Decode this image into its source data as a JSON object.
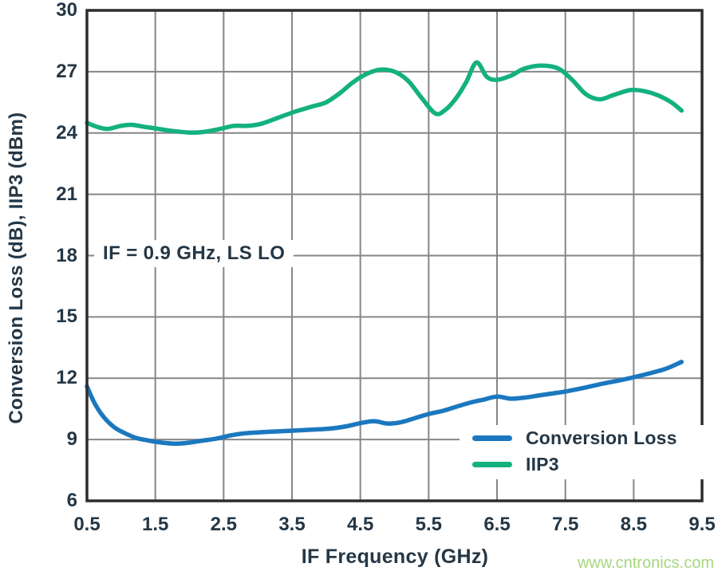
{
  "colors": {
    "background": "#ffffff",
    "text": "#243746",
    "grid": "#868686",
    "border": "#2d2d2d",
    "conversion_loss_blue": "#1b78bf",
    "iip3_green": "#13b17f",
    "watermark_green": "#a7d77d"
  },
  "watermark": "www.cntronics.com",
  "chart_data": {
    "type": "line",
    "title": "",
    "xlabel": "IF Frequency (GHz)",
    "ylabel": "Conversion Loss (dB), IIP3 (dBm)",
    "annotation": "IF = 0.9 GHz, LS LO",
    "grid": true,
    "legend_position": "inside lower right",
    "xlim": [
      0.5,
      9.5
    ],
    "ylim": [
      6,
      30
    ],
    "xticks": [
      0.5,
      1.5,
      2.5,
      3.5,
      4.5,
      5.5,
      6.5,
      7.5,
      8.5,
      9.5
    ],
    "yticks": [
      6,
      9,
      12,
      15,
      18,
      21,
      24,
      27,
      30
    ],
    "xtick_labels": [
      "0.5",
      "1.5",
      "2.5",
      "3.5",
      "4.5",
      "5.5",
      "6.5",
      "7.5",
      "8.5",
      "9.5"
    ],
    "ytick_labels": [
      "6",
      "9",
      "12",
      "15",
      "18",
      "21",
      "24",
      "27",
      "30"
    ],
    "series": [
      {
        "name": "Conversion Loss",
        "unit": "dB",
        "color": "#1b78bf",
        "points": [
          [
            0.5,
            11.6
          ],
          [
            0.6,
            10.85
          ],
          [
            0.7,
            10.3
          ],
          [
            0.8,
            9.9
          ],
          [
            0.9,
            9.6
          ],
          [
            1.0,
            9.4
          ],
          [
            1.2,
            9.1
          ],
          [
            1.4,
            8.95
          ],
          [
            1.6,
            8.85
          ],
          [
            1.8,
            8.8
          ],
          [
            2.0,
            8.85
          ],
          [
            2.2,
            8.95
          ],
          [
            2.4,
            9.05
          ],
          [
            2.6,
            9.2
          ],
          [
            2.8,
            9.3
          ],
          [
            3.0,
            9.35
          ],
          [
            3.3,
            9.4
          ],
          [
            3.6,
            9.45
          ],
          [
            3.9,
            9.5
          ],
          [
            4.1,
            9.55
          ],
          [
            4.3,
            9.65
          ],
          [
            4.5,
            9.8
          ],
          [
            4.7,
            9.9
          ],
          [
            4.9,
            9.78
          ],
          [
            5.1,
            9.85
          ],
          [
            5.3,
            10.05
          ],
          [
            5.5,
            10.25
          ],
          [
            5.7,
            10.4
          ],
          [
            5.9,
            10.6
          ],
          [
            6.1,
            10.8
          ],
          [
            6.3,
            10.95
          ],
          [
            6.5,
            11.1
          ],
          [
            6.7,
            11.0
          ],
          [
            6.9,
            11.05
          ],
          [
            7.1,
            11.15
          ],
          [
            7.3,
            11.25
          ],
          [
            7.5,
            11.35
          ],
          [
            7.8,
            11.55
          ],
          [
            8.0,
            11.7
          ],
          [
            8.3,
            11.9
          ],
          [
            8.5,
            12.05
          ],
          [
            8.8,
            12.3
          ],
          [
            9.0,
            12.5
          ],
          [
            9.2,
            12.8
          ]
        ]
      },
      {
        "name": "IIP3",
        "unit": "dBm",
        "color": "#13b17f",
        "points": [
          [
            0.5,
            24.5
          ],
          [
            0.65,
            24.3
          ],
          [
            0.8,
            24.2
          ],
          [
            1.0,
            24.35
          ],
          [
            1.15,
            24.4
          ],
          [
            1.35,
            24.3
          ],
          [
            1.55,
            24.2
          ],
          [
            1.75,
            24.1
          ],
          [
            2.0,
            24.02
          ],
          [
            2.2,
            24.05
          ],
          [
            2.45,
            24.2
          ],
          [
            2.65,
            24.35
          ],
          [
            2.85,
            24.35
          ],
          [
            3.05,
            24.45
          ],
          [
            3.3,
            24.75
          ],
          [
            3.55,
            25.05
          ],
          [
            3.8,
            25.3
          ],
          [
            4.0,
            25.5
          ],
          [
            4.2,
            25.95
          ],
          [
            4.4,
            26.5
          ],
          [
            4.6,
            26.9
          ],
          [
            4.8,
            27.1
          ],
          [
            5.0,
            27.0
          ],
          [
            5.2,
            26.55
          ],
          [
            5.4,
            25.7
          ],
          [
            5.6,
            24.95
          ],
          [
            5.75,
            25.15
          ],
          [
            5.9,
            25.7
          ],
          [
            6.05,
            26.5
          ],
          [
            6.2,
            27.45
          ],
          [
            6.35,
            26.75
          ],
          [
            6.5,
            26.6
          ],
          [
            6.7,
            26.8
          ],
          [
            6.9,
            27.15
          ],
          [
            7.15,
            27.3
          ],
          [
            7.4,
            27.15
          ],
          [
            7.6,
            26.6
          ],
          [
            7.8,
            25.9
          ],
          [
            8.0,
            25.65
          ],
          [
            8.2,
            25.85
          ],
          [
            8.45,
            26.1
          ],
          [
            8.65,
            26.05
          ],
          [
            8.85,
            25.85
          ],
          [
            9.05,
            25.5
          ],
          [
            9.2,
            25.1
          ]
        ]
      }
    ]
  }
}
